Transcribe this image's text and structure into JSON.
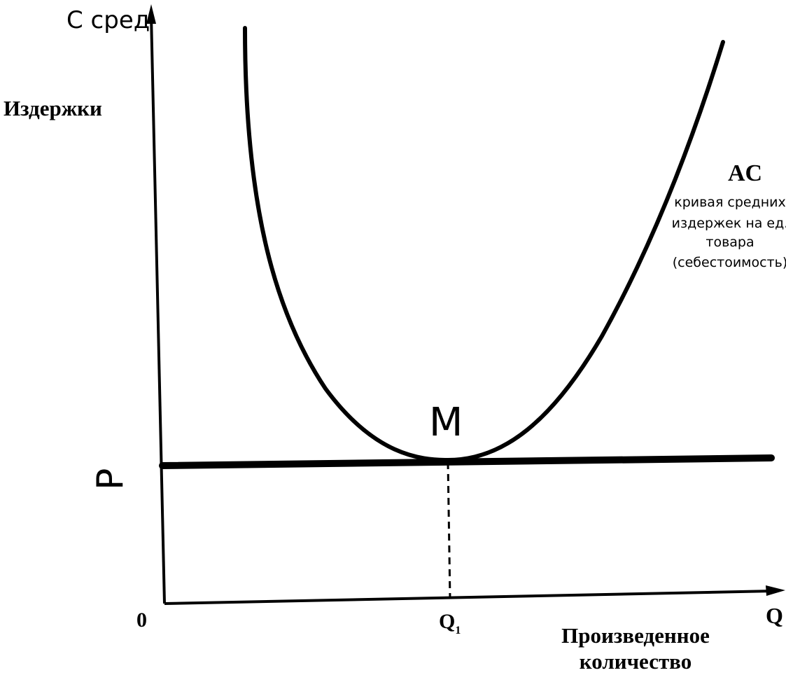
{
  "axes": {
    "y_label": "С сред",
    "y_title": "Издержки",
    "origin": "0",
    "x_label": "Q",
    "x_title_lines": [
      "Произведенное",
      "количество"
    ]
  },
  "curve": {
    "label": "AC",
    "description_lines": [
      "кривая средних",
      "издержек на ед.",
      "товара",
      "(себестоимость)"
    ]
  },
  "points": {
    "minimum": "M",
    "price": "P",
    "quantity": {
      "text": "Q",
      "sub": "1"
    }
  }
}
